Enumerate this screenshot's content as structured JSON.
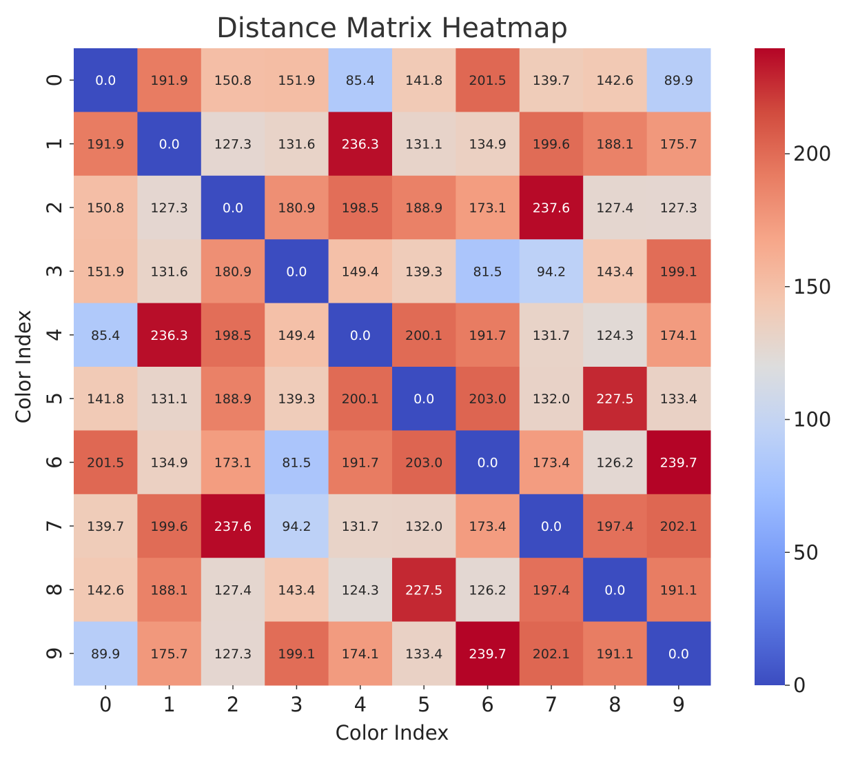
{
  "chart_data": {
    "type": "heatmap",
    "title": "Distance Matrix Heatmap",
    "xlabel": "Color Index",
    "ylabel": "Color Index",
    "x_categories": [
      "0",
      "1",
      "2",
      "3",
      "4",
      "5",
      "6",
      "7",
      "8",
      "9"
    ],
    "y_categories": [
      "0",
      "1",
      "2",
      "3",
      "4",
      "5",
      "6",
      "7",
      "8",
      "9"
    ],
    "values": [
      [
        0.0,
        191.9,
        150.8,
        151.9,
        85.4,
        141.8,
        201.5,
        139.7,
        142.6,
        89.9
      ],
      [
        191.9,
        0.0,
        127.3,
        131.6,
        236.3,
        131.1,
        134.9,
        199.6,
        188.1,
        175.7
      ],
      [
        150.8,
        127.3,
        0.0,
        180.9,
        198.5,
        188.9,
        173.1,
        237.6,
        127.4,
        127.3
      ],
      [
        151.9,
        131.6,
        180.9,
        0.0,
        149.4,
        139.3,
        81.5,
        94.2,
        143.4,
        199.1
      ],
      [
        85.4,
        236.3,
        198.5,
        149.4,
        0.0,
        200.1,
        191.7,
        131.7,
        124.3,
        174.1
      ],
      [
        141.8,
        131.1,
        188.9,
        139.3,
        200.1,
        0.0,
        203.0,
        132.0,
        227.5,
        133.4
      ],
      [
        201.5,
        134.9,
        173.1,
        81.5,
        191.7,
        203.0,
        0.0,
        173.4,
        126.2,
        239.7
      ],
      [
        139.7,
        199.6,
        237.6,
        94.2,
        131.7,
        132.0,
        173.4,
        0.0,
        197.4,
        202.1
      ],
      [
        142.6,
        188.1,
        127.4,
        143.4,
        124.3,
        227.5,
        126.2,
        197.4,
        0.0,
        191.1
      ],
      [
        89.9,
        175.7,
        127.3,
        199.1,
        174.1,
        133.4,
        239.7,
        202.1,
        191.1,
        0.0
      ]
    ],
    "colormap": "coolwarm",
    "vmin": 0,
    "vmax": 239.7,
    "colorbar_ticks": [
      "0",
      "50",
      "100",
      "150",
      "200"
    ],
    "cell_value_format": "0.0"
  }
}
